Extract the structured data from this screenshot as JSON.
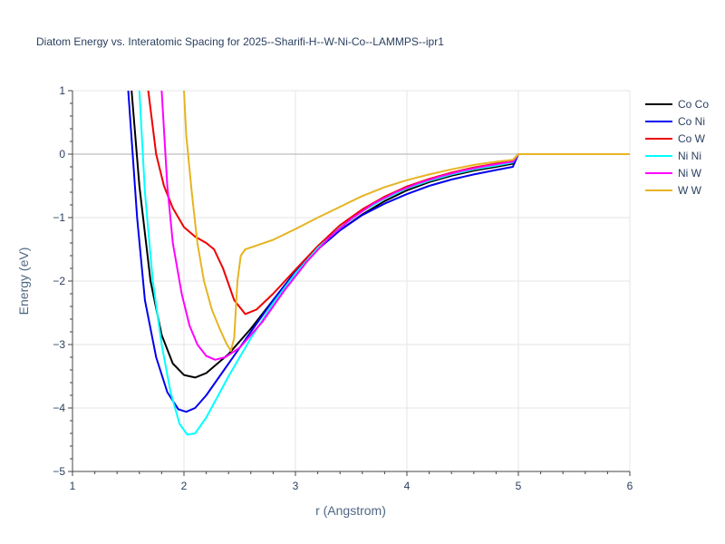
{
  "chart_data": {
    "type": "line",
    "title": "Diatom Energy vs. Interatomic Spacing for 2025--Sharifi-H--W-Ni-Co--LAMMPS--ipr1",
    "xlabel": "r (Angstrom)",
    "ylabel": "Energy (eV)",
    "xlim": [
      1,
      6
    ],
    "ylim": [
      -5,
      1
    ],
    "x_ticks": [
      1,
      2,
      3,
      4,
      5,
      6
    ],
    "y_ticks": [
      1,
      0,
      -1,
      -2,
      -3,
      -4,
      -5
    ],
    "x_tick_labels": [
      "1",
      "2",
      "3",
      "4",
      "5",
      "6"
    ],
    "y_tick_labels": [
      "1",
      "0",
      "−1",
      "−2",
      "−3",
      "−4",
      "−5"
    ],
    "grid": true,
    "legend_position": "top-right",
    "series": [
      {
        "name": "Co Co",
        "color": "#000000",
        "points": [
          [
            1.53,
            1.0
          ],
          [
            1.6,
            -0.5
          ],
          [
            1.7,
            -2.0
          ],
          [
            1.8,
            -2.85
          ],
          [
            1.9,
            -3.3
          ],
          [
            2.0,
            -3.48
          ],
          [
            2.1,
            -3.52
          ],
          [
            2.2,
            -3.45
          ],
          [
            2.4,
            -3.15
          ],
          [
            2.6,
            -2.75
          ],
          [
            2.8,
            -2.3
          ],
          [
            3.0,
            -1.85
          ],
          [
            3.2,
            -1.5
          ],
          [
            3.4,
            -1.2
          ],
          [
            3.6,
            -0.95
          ],
          [
            3.8,
            -0.74
          ],
          [
            4.0,
            -0.57
          ],
          [
            4.2,
            -0.44
          ],
          [
            4.4,
            -0.34
          ],
          [
            4.6,
            -0.26
          ],
          [
            4.8,
            -0.2
          ],
          [
            4.95,
            -0.15
          ],
          [
            5.0,
            0.0
          ],
          [
            6.0,
            0.0
          ]
        ]
      },
      {
        "name": "Co Ni",
        "color": "#0000ee",
        "points": [
          [
            1.5,
            1.0
          ],
          [
            1.58,
            -1.0
          ],
          [
            1.65,
            -2.3
          ],
          [
            1.75,
            -3.2
          ],
          [
            1.85,
            -3.75
          ],
          [
            1.95,
            -4.02
          ],
          [
            2.02,
            -4.06
          ],
          [
            2.1,
            -4.0
          ],
          [
            2.2,
            -3.8
          ],
          [
            2.4,
            -3.3
          ],
          [
            2.6,
            -2.8
          ],
          [
            2.8,
            -2.3
          ],
          [
            3.0,
            -1.85
          ],
          [
            3.2,
            -1.5
          ],
          [
            3.4,
            -1.2
          ],
          [
            3.6,
            -0.96
          ],
          [
            3.8,
            -0.78
          ],
          [
            4.0,
            -0.63
          ],
          [
            4.2,
            -0.5
          ],
          [
            4.4,
            -0.4
          ],
          [
            4.6,
            -0.32
          ],
          [
            4.8,
            -0.25
          ],
          [
            4.95,
            -0.2
          ],
          [
            5.0,
            0.0
          ],
          [
            6.0,
            0.0
          ]
        ]
      },
      {
        "name": "Co W",
        "color": "#ee0000",
        "points": [
          [
            1.68,
            1.0
          ],
          [
            1.75,
            0.0
          ],
          [
            1.82,
            -0.5
          ],
          [
            1.9,
            -0.85
          ],
          [
            2.0,
            -1.15
          ],
          [
            2.1,
            -1.3
          ],
          [
            2.2,
            -1.4
          ],
          [
            2.27,
            -1.5
          ],
          [
            2.35,
            -1.8
          ],
          [
            2.45,
            -2.3
          ],
          [
            2.55,
            -2.52
          ],
          [
            2.65,
            -2.45
          ],
          [
            2.8,
            -2.2
          ],
          [
            3.0,
            -1.82
          ],
          [
            3.2,
            -1.45
          ],
          [
            3.4,
            -1.12
          ],
          [
            3.6,
            -0.87
          ],
          [
            3.8,
            -0.67
          ],
          [
            4.0,
            -0.51
          ],
          [
            4.2,
            -0.39
          ],
          [
            4.4,
            -0.29
          ],
          [
            4.6,
            -0.21
          ],
          [
            4.8,
            -0.15
          ],
          [
            4.95,
            -0.11
          ],
          [
            5.0,
            0.0
          ],
          [
            6.0,
            0.0
          ]
        ]
      },
      {
        "name": "Ni Ni",
        "color": "#00ffff",
        "points": [
          [
            1.6,
            1.0
          ],
          [
            1.65,
            -0.6
          ],
          [
            1.72,
            -2.0
          ],
          [
            1.8,
            -3.0
          ],
          [
            1.88,
            -3.75
          ],
          [
            1.96,
            -4.25
          ],
          [
            2.03,
            -4.42
          ],
          [
            2.1,
            -4.4
          ],
          [
            2.2,
            -4.15
          ],
          [
            2.4,
            -3.5
          ],
          [
            2.6,
            -2.9
          ],
          [
            2.8,
            -2.35
          ],
          [
            3.0,
            -1.88
          ],
          [
            3.2,
            -1.48
          ],
          [
            3.4,
            -1.16
          ],
          [
            3.6,
            -0.9
          ],
          [
            3.8,
            -0.7
          ],
          [
            4.0,
            -0.54
          ],
          [
            4.2,
            -0.42
          ],
          [
            4.4,
            -0.32
          ],
          [
            4.6,
            -0.24
          ],
          [
            4.8,
            -0.18
          ],
          [
            4.95,
            -0.13
          ],
          [
            5.0,
            0.0
          ],
          [
            6.0,
            0.0
          ]
        ]
      },
      {
        "name": "Ni W",
        "color": "#ff00ff",
        "points": [
          [
            1.8,
            1.0
          ],
          [
            1.85,
            -0.5
          ],
          [
            1.9,
            -1.4
          ],
          [
            1.98,
            -2.2
          ],
          [
            2.05,
            -2.7
          ],
          [
            2.12,
            -3.0
          ],
          [
            2.2,
            -3.18
          ],
          [
            2.28,
            -3.24
          ],
          [
            2.37,
            -3.2
          ],
          [
            2.5,
            -3.05
          ],
          [
            2.7,
            -2.65
          ],
          [
            2.9,
            -2.15
          ],
          [
            3.1,
            -1.7
          ],
          [
            3.3,
            -1.32
          ],
          [
            3.5,
            -1.02
          ],
          [
            3.7,
            -0.78
          ],
          [
            3.9,
            -0.6
          ],
          [
            4.1,
            -0.46
          ],
          [
            4.3,
            -0.35
          ],
          [
            4.5,
            -0.26
          ],
          [
            4.7,
            -0.19
          ],
          [
            4.9,
            -0.13
          ],
          [
            4.95,
            -0.12
          ],
          [
            5.0,
            0.0
          ],
          [
            6.0,
            0.0
          ]
        ]
      },
      {
        "name": "W W",
        "color": "#e6b422",
        "points": [
          [
            2.0,
            1.0
          ],
          [
            2.02,
            0.3
          ],
          [
            2.07,
            -0.6
          ],
          [
            2.12,
            -1.4
          ],
          [
            2.18,
            -2.0
          ],
          [
            2.25,
            -2.45
          ],
          [
            2.32,
            -2.75
          ],
          [
            2.38,
            -2.98
          ],
          [
            2.42,
            -3.1
          ],
          [
            2.45,
            -2.9
          ],
          [
            2.48,
            -2.0
          ],
          [
            2.51,
            -1.6
          ],
          [
            2.55,
            -1.5
          ],
          [
            2.6,
            -1.47
          ],
          [
            2.8,
            -1.35
          ],
          [
            3.0,
            -1.18
          ],
          [
            3.2,
            -1.0
          ],
          [
            3.4,
            -0.83
          ],
          [
            3.6,
            -0.66
          ],
          [
            3.8,
            -0.52
          ],
          [
            4.0,
            -0.41
          ],
          [
            4.2,
            -0.32
          ],
          [
            4.4,
            -0.24
          ],
          [
            4.6,
            -0.17
          ],
          [
            4.8,
            -0.12
          ],
          [
            4.95,
            -0.09
          ],
          [
            5.0,
            0.0
          ],
          [
            6.0,
            0.0
          ]
        ]
      }
    ]
  }
}
